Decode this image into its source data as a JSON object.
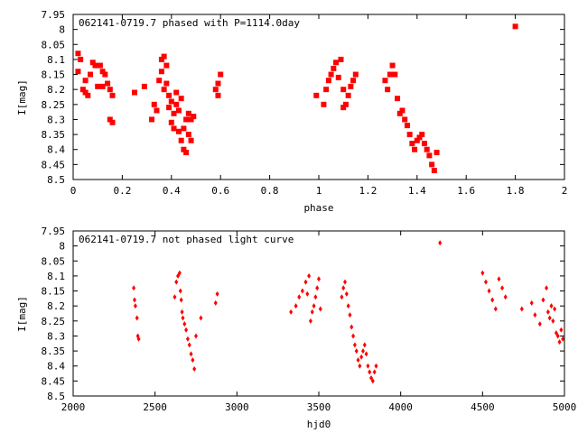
{
  "chart_data": [
    {
      "type": "scatter",
      "title": "062141-0719.7 phased with P=1114.0day",
      "xlabel": "phase",
      "ylabel": "I[mag]",
      "xlim": [
        0,
        2
      ],
      "ylim": [
        7.95,
        8.5
      ],
      "y_inverted": true,
      "x_ticks": [
        0,
        0.2,
        0.4,
        0.6,
        0.8,
        1,
        1.2,
        1.4,
        1.6,
        1.8,
        2
      ],
      "x_tick_labels": [
        "0",
        "0.2",
        "0.4",
        "0.6",
        "0.8",
        "1",
        "1.2",
        "1.4",
        "1.6",
        "1.8",
        "2"
      ],
      "y_ticks": [
        7.95,
        8,
        8.05,
        8.1,
        8.15,
        8.2,
        8.25,
        8.3,
        8.35,
        8.4,
        8.45,
        8.5
      ],
      "y_tick_labels": [
        "7.95",
        "8",
        "8.05",
        "8.1",
        "8.15",
        "8.2",
        "8.25",
        "8.3",
        "8.35",
        "8.4",
        "8.45",
        "8.5"
      ],
      "grid": false,
      "color": "#ff0000",
      "marker": "square",
      "series": [
        {
          "x": [
            0.02,
            0.02,
            0.03,
            0.04,
            0.05,
            0.05,
            0.06,
            0.07,
            0.08,
            0.09,
            0.1,
            0.11,
            0.12,
            0.12,
            0.13,
            0.14,
            0.15,
            0.15,
            0.16,
            0.16,
            0.25,
            0.29,
            0.32,
            0.33,
            0.34,
            0.35,
            0.36,
            0.36,
            0.37,
            0.37,
            0.38,
            0.38,
            0.39,
            0.39,
            0.4,
            0.4,
            0.41,
            0.41,
            0.42,
            0.42,
            0.43,
            0.43,
            0.44,
            0.44,
            0.45,
            0.45,
            0.46,
            0.46,
            0.47,
            0.47,
            0.48,
            0.48,
            0.49,
            0.58,
            0.59,
            0.59,
            0.6,
            0.99,
            1.02,
            1.03,
            1.04,
            1.05,
            1.06,
            1.07,
            1.08,
            1.09,
            1.1,
            1.1,
            1.11,
            1.12,
            1.13,
            1.14,
            1.15,
            1.27,
            1.28,
            1.29,
            1.3,
            1.31,
            1.32,
            1.33,
            1.34,
            1.35,
            1.36,
            1.37,
            1.38,
            1.39,
            1.4,
            1.41,
            1.42,
            1.43,
            1.44,
            1.45,
            1.46,
            1.47,
            1.48,
            1.8
          ],
          "y": [
            8.14,
            8.08,
            8.1,
            8.2,
            8.17,
            8.21,
            8.22,
            8.15,
            8.11,
            8.12,
            8.19,
            8.12,
            8.19,
            8.14,
            8.15,
            8.18,
            8.2,
            8.3,
            8.31,
            8.22,
            8.21,
            8.19,
            8.3,
            8.25,
            8.27,
            8.17,
            8.14,
            8.1,
            8.09,
            8.2,
            8.12,
            8.18,
            8.22,
            8.26,
            8.24,
            8.31,
            8.28,
            8.33,
            8.25,
            8.21,
            8.34,
            8.27,
            8.37,
            8.23,
            8.33,
            8.4,
            8.3,
            8.41,
            8.35,
            8.28,
            8.37,
            8.3,
            8.29,
            8.2,
            8.18,
            8.22,
            8.15,
            8.22,
            8.25,
            8.2,
            8.17,
            8.15,
            8.13,
            8.11,
            8.16,
            8.1,
            8.26,
            8.2,
            8.25,
            8.22,
            8.19,
            8.17,
            8.15,
            8.17,
            8.2,
            8.15,
            8.12,
            8.15,
            8.23,
            8.28,
            8.27,
            8.3,
            8.32,
            8.35,
            8.38,
            8.4,
            8.37,
            8.36,
            8.35,
            8.38,
            8.4,
            8.42,
            8.45,
            8.47,
            8.41,
            7.99
          ]
        }
      ]
    },
    {
      "type": "scatter",
      "title": "062141-0719.7 not phased light curve",
      "xlabel": "hjd0",
      "ylabel": "I[mag]",
      "xlim": [
        2000,
        5000
      ],
      "ylim": [
        7.95,
        8.5
      ],
      "y_inverted": true,
      "x_ticks": [
        2000,
        2500,
        3000,
        3500,
        4000,
        4500,
        5000
      ],
      "x_tick_labels": [
        "2000",
        "2500",
        "3000",
        "3500",
        "4000",
        "4500",
        "5000"
      ],
      "y_ticks": [
        7.95,
        8,
        8.05,
        8.1,
        8.15,
        8.2,
        8.25,
        8.3,
        8.35,
        8.4,
        8.45,
        8.5
      ],
      "y_tick_labels": [
        "7.95",
        "8",
        "8.05",
        "8.1",
        "8.15",
        "8.2",
        "8.25",
        "8.3",
        "8.35",
        "8.4",
        "8.45",
        "8.5"
      ],
      "grid": false,
      "color": "#ff0000",
      "marker": "diamond",
      "series": [
        {
          "x": [
            2370,
            2375,
            2380,
            2390,
            2395,
            2400,
            2620,
            2630,
            2640,
            2650,
            2655,
            2660,
            2665,
            2670,
            2680,
            2690,
            2700,
            2710,
            2720,
            2730,
            2740,
            2750,
            2780,
            2870,
            2880,
            3330,
            3360,
            3380,
            3400,
            3420,
            3430,
            3440,
            3450,
            3460,
            3470,
            3480,
            3490,
            3500,
            3510,
            3640,
            3650,
            3660,
            3670,
            3680,
            3690,
            3700,
            3710,
            3720,
            3730,
            3740,
            3750,
            3760,
            3770,
            3780,
            3790,
            3800,
            3810,
            3820,
            3830,
            3840,
            3850,
            4240,
            4500,
            4520,
            4540,
            4560,
            4580,
            4600,
            4620,
            4640,
            4740,
            4800,
            4820,
            4850,
            4870,
            4890,
            4900,
            4910,
            4920,
            4930,
            4940,
            4950,
            4960,
            4970,
            4980,
            4990
          ],
          "y": [
            8.14,
            8.18,
            8.2,
            8.24,
            8.3,
            8.31,
            8.17,
            8.12,
            8.1,
            8.09,
            8.15,
            8.18,
            8.22,
            8.24,
            8.26,
            8.28,
            8.31,
            8.33,
            8.36,
            8.38,
            8.41,
            8.3,
            8.24,
            8.19,
            8.16,
            8.22,
            8.2,
            8.17,
            8.15,
            8.12,
            8.16,
            8.1,
            8.25,
            8.22,
            8.2,
            8.17,
            8.14,
            8.11,
            8.21,
            8.17,
            8.14,
            8.12,
            8.16,
            8.2,
            8.23,
            8.27,
            8.3,
            8.33,
            8.35,
            8.38,
            8.4,
            8.37,
            8.35,
            8.33,
            8.36,
            8.4,
            8.42,
            8.44,
            8.45,
            8.42,
            8.4,
            7.99,
            8.09,
            8.12,
            8.15,
            8.18,
            8.21,
            8.11,
            8.14,
            8.17,
            8.21,
            8.19,
            8.23,
            8.26,
            8.18,
            8.14,
            8.22,
            8.24,
            8.2,
            8.25,
            8.21,
            8.29,
            8.3,
            8.32,
            8.28,
            8.31
          ]
        }
      ]
    }
  ]
}
